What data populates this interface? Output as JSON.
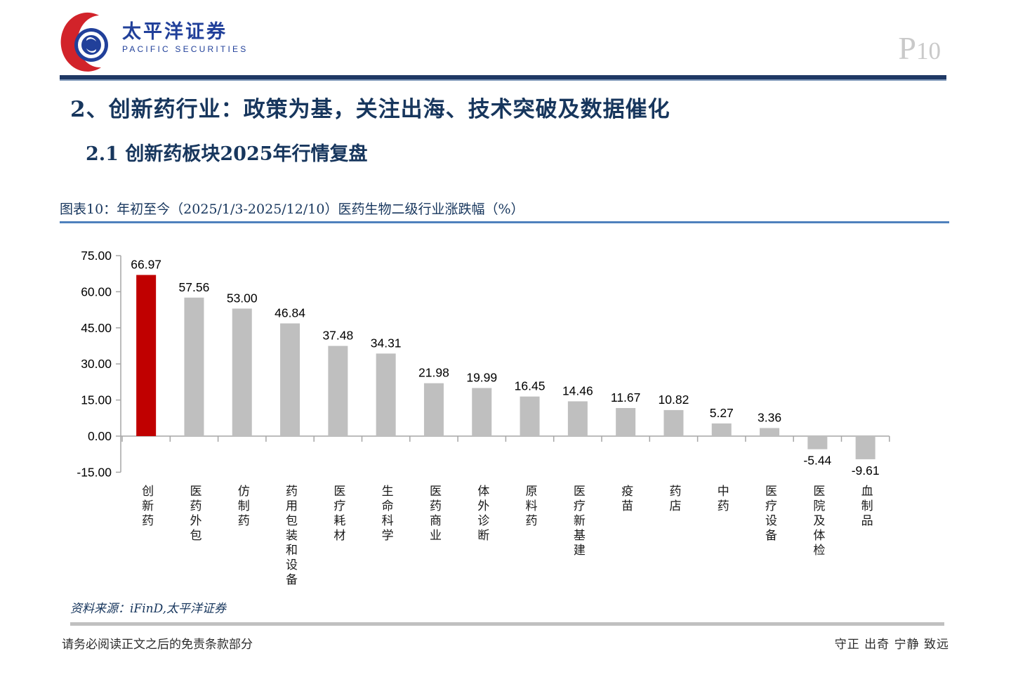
{
  "header": {
    "logo_cn": "太平洋证券",
    "logo_en": "PACIFIC SECURITIES",
    "page_prefix": "P",
    "page_number": "10"
  },
  "title": "2、创新药行业：政策为基，关注出海、技术突破及数据催化",
  "subtitle": "2.1 创新药板块2025年行情复盘",
  "figure": {
    "caption": "图表10：年初至今（2025/1/3-2025/12/10）医药生物二级行业涨跌幅（%）",
    "source": "资料来源：iFinD,太平洋证券"
  },
  "chart_data": {
    "type": "bar",
    "title": "年初至今（2025/1/3-2025/12/10）医药生物二级行业涨跌幅（%）",
    "xlabel": "",
    "ylabel": "",
    "categories": [
      "创新药",
      "医药外包",
      "仿制药",
      "药用包装和设备",
      "医疗耗材",
      "生命科学",
      "医药商业",
      "体外诊断",
      "原料药",
      "医疗新基建",
      "疫苗",
      "药店",
      "中药",
      "医疗设备",
      "医院及体检",
      "血制品"
    ],
    "values": [
      66.97,
      57.56,
      53.0,
      46.84,
      37.48,
      34.31,
      21.98,
      19.99,
      16.45,
      14.46,
      11.67,
      10.82,
      5.27,
      3.36,
      -5.44,
      -9.61
    ],
    "ylim": [
      -15,
      75
    ],
    "ytick_step": 15,
    "grid": false,
    "legend": "none",
    "highlight_index": 0,
    "highlight_color": "#C00000",
    "bar_color": "#BFBFBF"
  },
  "footer": {
    "left": "请务必阅读正文之后的免责条款部分",
    "right": "守正 出奇 宁静 致远"
  },
  "colors": {
    "title_navy": "#17365D",
    "header_rule_navy": "#1F3864",
    "caption_rule_blue": "#4F81BD",
    "axis_gray": "#A6A6A6",
    "label_black": "#000000",
    "page_number_gray": "#C9C9C9",
    "logo_blue": "#21409A",
    "logo_red": "#D2232A"
  }
}
